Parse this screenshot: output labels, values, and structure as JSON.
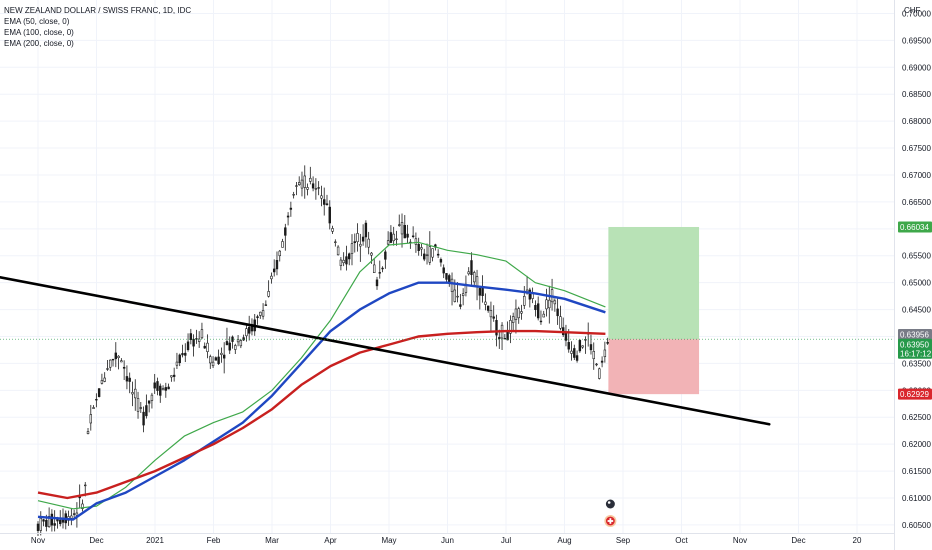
{
  "legend": {
    "title": "NEW ZEALAND DOLLAR / SWISS FRANC, 1D, IDC",
    "ema50": "EMA (50, close, 0)",
    "ema100": "EMA (100, close, 0)",
    "ema200": "EMA (200, close, 0)"
  },
  "currency": "CHF",
  "countdown": "16:17:12",
  "colors": {
    "ema50": "#3fa84a",
    "ema100": "#1f47c2",
    "ema200": "#c8201f",
    "up": "#1a1a1a",
    "trendline": "#000000",
    "target_zone": "#b8e2b6",
    "stop_zone": "#f2b3b6",
    "target_badge": "#3fa84a",
    "stop_badge": "#d9262c",
    "current_badge": "#26994a",
    "prev_badge": "#787b86"
  },
  "chart_data": {
    "type": "line",
    "x_ticks": [
      "Nov",
      "Dec",
      "2021",
      "Feb",
      "Mar",
      "Apr",
      "May",
      "Jun",
      "Jul",
      "Aug",
      "Sep",
      "Oct",
      "Nov",
      "Dec",
      "20"
    ],
    "y_ticks": [
      "0.60500",
      "0.61000",
      "0.61500",
      "0.62000",
      "0.62500",
      "0.63000",
      "0.63500",
      "0.64000",
      "0.64500",
      "0.65000",
      "0.65500",
      "0.66000",
      "0.66500",
      "0.67000",
      "0.67500",
      "0.68000",
      "0.68500",
      "0.69000",
      "0.69500",
      "0.70000"
    ],
    "ylim": [
      0.6035,
      0.7025
    ],
    "price_labels": {
      "target": "0.66034",
      "prev_close": "0.63956",
      "current": "0.63950",
      "stop": "0.62929"
    },
    "price_values": {
      "target": 0.66034,
      "prev_close": 0.63956,
      "current": 0.6395,
      "stop": 0.62929
    },
    "series": [
      {
        "name": "EMA (50, close, 0)",
        "color": "#3fa84a",
        "points": [
          [
            0,
            0.6095
          ],
          [
            0.6,
            0.608
          ],
          [
            1.0,
            0.6085
          ],
          [
            1.5,
            0.612
          ],
          [
            2.0,
            0.617
          ],
          [
            2.5,
            0.6215
          ],
          [
            3.0,
            0.624
          ],
          [
            3.5,
            0.626
          ],
          [
            4.0,
            0.63
          ],
          [
            4.5,
            0.636
          ],
          [
            5.0,
            0.643
          ],
          [
            5.5,
            0.652
          ],
          [
            6.0,
            0.657
          ],
          [
            6.5,
            0.6575
          ],
          [
            7.0,
            0.656
          ],
          [
            7.5,
            0.6552
          ],
          [
            8.0,
            0.654
          ],
          [
            8.5,
            0.65
          ],
          [
            9.0,
            0.6485
          ],
          [
            9.7,
            0.6455
          ]
        ]
      },
      {
        "name": "EMA (100, close, 0)",
        "color": "#1f47c2",
        "points": [
          [
            0,
            0.6065
          ],
          [
            0.6,
            0.606
          ],
          [
            1.0,
            0.609
          ],
          [
            1.5,
            0.611
          ],
          [
            2.0,
            0.614
          ],
          [
            2.5,
            0.617
          ],
          [
            3.0,
            0.6205
          ],
          [
            3.5,
            0.624
          ],
          [
            4.0,
            0.629
          ],
          [
            4.5,
            0.635
          ],
          [
            5.0,
            0.641
          ],
          [
            5.5,
            0.645
          ],
          [
            6.0,
            0.648
          ],
          [
            6.5,
            0.65
          ],
          [
            7.0,
            0.65
          ],
          [
            7.5,
            0.6493
          ],
          [
            8.0,
            0.6487
          ],
          [
            8.5,
            0.648
          ],
          [
            9.0,
            0.647
          ],
          [
            9.7,
            0.6445
          ]
        ]
      },
      {
        "name": "EMA (200, close, 0)",
        "color": "#c8201f",
        "points": [
          [
            0,
            0.611
          ],
          [
            0.5,
            0.61
          ],
          [
            1.0,
            0.611
          ],
          [
            1.5,
            0.613
          ],
          [
            2.0,
            0.615
          ],
          [
            2.5,
            0.6175
          ],
          [
            3.0,
            0.62
          ],
          [
            3.5,
            0.623
          ],
          [
            4.0,
            0.6265
          ],
          [
            4.5,
            0.631
          ],
          [
            5.0,
            0.6345
          ],
          [
            5.5,
            0.637
          ],
          [
            6.0,
            0.6385
          ],
          [
            6.5,
            0.64
          ],
          [
            7.0,
            0.6405
          ],
          [
            7.5,
            0.6408
          ],
          [
            8.0,
            0.641
          ],
          [
            8.5,
            0.641
          ],
          [
            9.0,
            0.6408
          ],
          [
            9.7,
            0.6405
          ]
        ]
      }
    ],
    "trendline": [
      [
        -0.65,
        0.651
      ],
      [
        12.5,
        0.6237
      ]
    ],
    "price_path": [
      [
        0,
        0.605
      ],
      [
        0.3,
        0.606
      ],
      [
        0.6,
        0.607
      ],
      [
        0.8,
        0.61
      ],
      [
        0.85,
        0.622
      ],
      [
        1.0,
        0.628
      ],
      [
        1.2,
        0.635
      ],
      [
        1.4,
        0.637
      ],
      [
        1.6,
        0.63
      ],
      [
        1.8,
        0.625
      ],
      [
        2.0,
        0.631
      ],
      [
        2.2,
        0.63
      ],
      [
        2.4,
        0.635
      ],
      [
        2.6,
        0.639
      ],
      [
        2.8,
        0.64
      ],
      [
        3.0,
        0.635
      ],
      [
        3.2,
        0.638
      ],
      [
        3.5,
        0.64
      ],
      [
        3.7,
        0.642
      ],
      [
        3.9,
        0.646
      ],
      [
        4.1,
        0.654
      ],
      [
        4.3,
        0.663
      ],
      [
        4.4,
        0.67
      ],
      [
        4.6,
        0.668
      ],
      [
        4.8,
        0.668
      ],
      [
        5.0,
        0.662
      ],
      [
        5.2,
        0.653
      ],
      [
        5.4,
        0.657
      ],
      [
        5.6,
        0.66
      ],
      [
        5.8,
        0.65
      ],
      [
        6.0,
        0.658
      ],
      [
        6.2,
        0.66
      ],
      [
        6.4,
        0.658
      ],
      [
        6.6,
        0.655
      ],
      [
        6.8,
        0.656
      ],
      [
        7.0,
        0.651
      ],
      [
        7.2,
        0.646
      ],
      [
        7.4,
        0.653
      ],
      [
        7.6,
        0.648
      ],
      [
        7.8,
        0.642
      ],
      [
        8.0,
        0.64
      ],
      [
        8.2,
        0.644
      ],
      [
        8.4,
        0.648
      ],
      [
        8.6,
        0.644
      ],
      [
        8.8,
        0.648
      ],
      [
        9.0,
        0.64
      ],
      [
        9.2,
        0.637
      ],
      [
        9.4,
        0.64
      ],
      [
        9.6,
        0.633
      ],
      [
        9.75,
        0.6395
      ]
    ],
    "positions": [
      {
        "start_x": 9.75,
        "end_x": 11.3,
        "entry": 0.6395,
        "target": 0.66034,
        "stop": 0.62929
      }
    ]
  }
}
